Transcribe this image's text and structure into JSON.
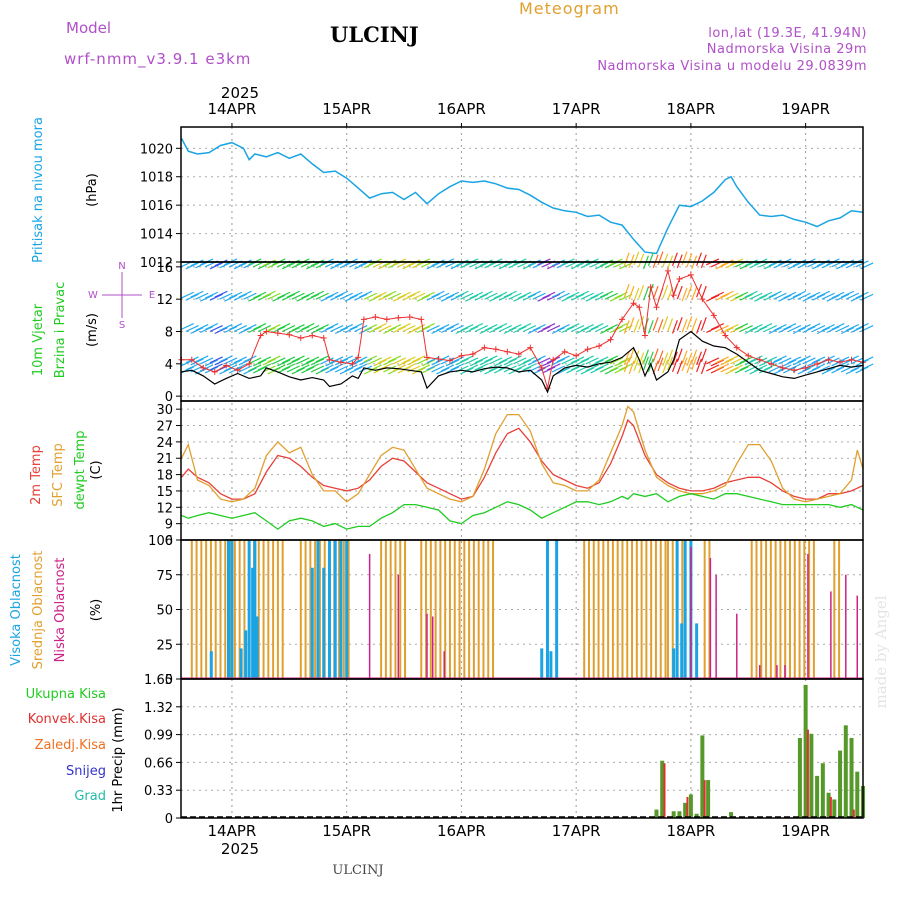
{
  "header": {
    "model_label": "Model",
    "model_name": "wrf-nmm_v3.9.1  e3km",
    "station": "ULCINJ",
    "meteogram": "Meteogram",
    "lonlat": "lon,lat (19.3E, 41.94N)",
    "elevation": "Nadmorska Visina 29m",
    "model_elevation": "Nadmorska Visina u modelu 29.0839m",
    "footer_station": "ULCINJ",
    "watermark": "made by Angel"
  },
  "colors": {
    "pressure": "#1aa4e4",
    "temp2m": "#e8413a",
    "sfc": "#e0a030",
    "dewpt": "#22cc22",
    "high_cloud": "#1aa4e4",
    "mid_cloud": "#e0a030",
    "low_cloud": "#cc2288",
    "precip_total": "#55992a",
    "precip_conv": "#e03030",
    "wind_gust": "#ee3030",
    "wind_speed": "#000000"
  },
  "time_axis": {
    "year": "2025",
    "days": [
      "14APR",
      "15APR",
      "16APR",
      "17APR",
      "18APR",
      "19APR"
    ],
    "day_start": 13.556,
    "day_end": 19.5
  },
  "chart_data": [
    {
      "type": "line",
      "name": "pressure",
      "ylabel_lines": [
        "Pritisak na nivou mora",
        "(hPa)"
      ],
      "ylim": [
        1012,
        1021.5
      ],
      "yticks": [
        1012,
        1014,
        1016,
        1018,
        1020
      ],
      "x": [
        13.56,
        13.62,
        13.7,
        13.8,
        13.9,
        14.0,
        14.1,
        14.15,
        14.2,
        14.3,
        14.4,
        14.5,
        14.6,
        14.7,
        14.8,
        14.9,
        15.0,
        15.1,
        15.2,
        15.3,
        15.4,
        15.5,
        15.6,
        15.7,
        15.8,
        15.9,
        16.0,
        16.1,
        16.2,
        16.3,
        16.4,
        16.5,
        16.6,
        16.7,
        16.8,
        16.9,
        17.0,
        17.1,
        17.2,
        17.3,
        17.4,
        17.5,
        17.6,
        17.7,
        17.8,
        17.9,
        18.0,
        18.1,
        18.2,
        18.3,
        18.35,
        18.4,
        18.5,
        18.6,
        18.7,
        18.8,
        18.9,
        19.0,
        19.1,
        19.2,
        19.3,
        19.4,
        19.5
      ],
      "y": [
        1020.7,
        1019.8,
        1019.6,
        1019.7,
        1020.2,
        1020.4,
        1020.0,
        1019.2,
        1019.6,
        1019.4,
        1019.7,
        1019.3,
        1019.6,
        1018.9,
        1018.3,
        1018.4,
        1017.9,
        1017.2,
        1016.5,
        1016.8,
        1016.9,
        1016.4,
        1016.9,
        1016.1,
        1016.8,
        1017.3,
        1017.7,
        1017.6,
        1017.7,
        1017.5,
        1017.2,
        1017.1,
        1016.7,
        1016.2,
        1015.8,
        1015.6,
        1015.5,
        1015.2,
        1015.3,
        1014.8,
        1014.6,
        1013.6,
        1012.7,
        1012.6,
        1014.4,
        1016.0,
        1015.9,
        1016.3,
        1016.9,
        1017.8,
        1018.0,
        1017.3,
        1016.2,
        1015.3,
        1015.2,
        1015.3,
        1015.0,
        1014.8,
        1014.5,
        1014.9,
        1015.1,
        1015.6,
        1015.5
      ]
    },
    {
      "type": "line",
      "name": "wind",
      "ylabel_lines": [
        "10m Vjetar",
        "Brzina i Pravac",
        "(m/s)"
      ],
      "compass": [
        "N",
        "W",
        "E",
        "S"
      ],
      "ylim": [
        -0.6,
        16.6
      ],
      "yticks": [
        0,
        4,
        8,
        12,
        16
      ],
      "x": [
        13.56,
        13.65,
        13.75,
        13.85,
        13.95,
        14.05,
        14.15,
        14.25,
        14.3,
        14.4,
        14.5,
        14.6,
        14.7,
        14.8,
        14.85,
        14.95,
        15.05,
        15.1,
        15.15,
        15.25,
        15.35,
        15.45,
        15.55,
        15.65,
        15.7,
        15.8,
        15.9,
        16.0,
        16.1,
        16.2,
        16.3,
        16.4,
        16.5,
        16.6,
        16.7,
        16.75,
        16.8,
        16.9,
        17.0,
        17.1,
        17.2,
        17.3,
        17.4,
        17.5,
        17.55,
        17.6,
        17.65,
        17.7,
        17.8,
        17.85,
        17.9,
        18.0,
        18.1,
        18.2,
        18.3,
        18.4,
        18.5,
        18.6,
        18.7,
        18.8,
        18.9,
        19.0,
        19.1,
        19.2,
        19.3,
        19.4,
        19.5
      ],
      "series": [
        {
          "name": "gust",
          "values": [
            4.5,
            4.5,
            3.5,
            3.0,
            3.8,
            3.2,
            4.0,
            7.5,
            8.0,
            7.8,
            7.6,
            7.2,
            7.5,
            7.2,
            4.5,
            4.2,
            4.0,
            4.8,
            9.5,
            9.8,
            9.5,
            9.7,
            9.8,
            9.5,
            4.8,
            4.6,
            4.4,
            5.0,
            5.2,
            6.0,
            5.8,
            5.5,
            5.2,
            6.0,
            3.5,
            1.0,
            4.5,
            5.5,
            5.0,
            5.8,
            6.2,
            7.0,
            9.5,
            11.5,
            11.0,
            7.5,
            13.5,
            11.0,
            15.5,
            12.5,
            14.5,
            15.0,
            12.0,
            10.0,
            7.5,
            6.0,
            5.0,
            4.5,
            4.0,
            3.5,
            3.2,
            3.5,
            4.0,
            4.5,
            4.2,
            4.5,
            4.2
          ]
        },
        {
          "name": "speed",
          "values": [
            3.0,
            3.2,
            2.5,
            1.5,
            2.2,
            2.8,
            2.2,
            2.5,
            3.5,
            3.0,
            2.4,
            2.0,
            2.3,
            2.0,
            1.2,
            1.5,
            2.5,
            2.2,
            3.5,
            3.2,
            3.5,
            3.4,
            3.2,
            3.0,
            1.0,
            2.5,
            3.0,
            3.2,
            3.0,
            3.4,
            3.6,
            3.5,
            3.0,
            3.2,
            2.0,
            0.5,
            2.5,
            3.5,
            3.8,
            3.6,
            4.0,
            4.2,
            4.8,
            6.0,
            4.5,
            2.5,
            4.0,
            2.0,
            3.0,
            4.5,
            7.0,
            8.0,
            6.8,
            6.2,
            6.0,
            5.2,
            4.2,
            3.2,
            2.8,
            2.4,
            2.2,
            2.6,
            3.0,
            3.4,
            3.8,
            3.6,
            3.8
          ]
        }
      ]
    },
    {
      "type": "line",
      "name": "temperature",
      "ylabel_lines": [
        "2m Temp",
        "SFC Temp",
        "dewpt Temp",
        "(C)"
      ],
      "ylim": [
        6,
        31.5
      ],
      "yticks": [
        6,
        9,
        12,
        15,
        18,
        21,
        24,
        27,
        30
      ],
      "x": [
        13.56,
        13.62,
        13.7,
        13.8,
        13.9,
        14.0,
        14.1,
        14.2,
        14.3,
        14.4,
        14.5,
        14.6,
        14.7,
        14.8,
        14.9,
        15.0,
        15.1,
        15.2,
        15.3,
        15.4,
        15.5,
        15.6,
        15.7,
        15.8,
        15.9,
        16.0,
        16.1,
        16.2,
        16.3,
        16.4,
        16.5,
        16.6,
        16.7,
        16.8,
        16.9,
        17.0,
        17.1,
        17.2,
        17.3,
        17.4,
        17.45,
        17.5,
        17.6,
        17.7,
        17.8,
        17.9,
        18.0,
        18.1,
        18.2,
        18.3,
        18.4,
        18.5,
        18.6,
        18.7,
        18.8,
        18.9,
        19.0,
        19.1,
        19.2,
        19.3,
        19.4,
        19.45,
        19.5
      ],
      "series": [
        {
          "name": "2m",
          "values": [
            17.5,
            19.0,
            17.5,
            16.5,
            14.5,
            13.5,
            13.5,
            14.5,
            18.5,
            21.5,
            21.0,
            19.5,
            17.5,
            16.0,
            15.5,
            15.0,
            15.5,
            17.0,
            19.5,
            21.0,
            20.5,
            18.5,
            16.5,
            15.5,
            14.5,
            13.5,
            14.0,
            17.5,
            22.0,
            25.5,
            26.5,
            24.0,
            20.5,
            18.0,
            17.0,
            16.0,
            15.5,
            16.5,
            20.0,
            25.0,
            28.0,
            27.0,
            21.5,
            18.0,
            16.5,
            15.5,
            15.0,
            15.0,
            15.5,
            16.5,
            17.0,
            17.5,
            17.5,
            16.5,
            15.0,
            14.0,
            13.5,
            13.5,
            14.5,
            14.5,
            15.0,
            15.5,
            16.0
          ]
        },
        {
          "name": "sfc",
          "values": [
            21.0,
            23.5,
            17.0,
            16.0,
            13.5,
            13.0,
            13.5,
            15.5,
            21.5,
            24.0,
            22.0,
            23.0,
            18.0,
            15.0,
            15.0,
            13.0,
            14.5,
            18.0,
            21.5,
            23.0,
            22.5,
            19.0,
            15.5,
            14.5,
            13.5,
            13.0,
            14.0,
            19.0,
            25.5,
            29.0,
            29.0,
            26.0,
            20.0,
            16.5,
            16.0,
            15.0,
            15.0,
            17.0,
            22.0,
            27.0,
            30.5,
            29.5,
            22.5,
            17.5,
            16.0,
            15.0,
            14.5,
            14.5,
            15.0,
            16.0,
            20.0,
            23.5,
            23.5,
            20.5,
            15.5,
            13.5,
            13.0,
            13.5,
            14.0,
            14.5,
            17.0,
            22.5,
            19.0
          ]
        },
        {
          "name": "dewpt",
          "values": [
            10.5,
            10.0,
            10.5,
            11.0,
            10.5,
            10.0,
            10.5,
            11.0,
            9.5,
            8.0,
            9.5,
            10.0,
            9.5,
            8.5,
            9.0,
            8.0,
            8.5,
            8.5,
            10.0,
            11.0,
            12.5,
            12.5,
            12.0,
            11.5,
            9.5,
            9.0,
            10.5,
            11.0,
            12.0,
            13.0,
            12.5,
            11.5,
            10.0,
            11.0,
            12.0,
            13.0,
            13.0,
            12.5,
            13.0,
            14.0,
            13.5,
            14.5,
            14.0,
            14.5,
            13.0,
            14.0,
            14.5,
            14.0,
            13.5,
            14.5,
            14.5,
            14.0,
            13.5,
            13.0,
            12.5,
            12.5,
            12.5,
            12.5,
            12.5,
            12.0,
            12.5,
            12.0,
            11.5
          ]
        }
      ]
    },
    {
      "type": "bar",
      "name": "cloud_cover",
      "ylabel_lines": [
        "Visoka Oblacnost",
        "Srednja Oblacnost",
        "Niska Oblacnost",
        "(%)"
      ],
      "ylim": [
        0,
        100
      ],
      "yticks": [
        0,
        25,
        50,
        75,
        100
      ],
      "mid_on_ranges": [
        [
          13.65,
          14.45
        ],
        [
          14.6,
          15.05
        ],
        [
          15.3,
          15.55
        ],
        [
          15.65,
          16.3
        ],
        [
          17.07,
          17.78
        ],
        [
          17.8,
          17.95
        ],
        [
          18.12,
          18.17
        ],
        [
          18.53,
          19.1
        ],
        [
          19.25,
          19.3
        ]
      ],
      "high_bars": [
        {
          "x": 13.82,
          "v": 20
        },
        {
          "x": 13.97,
          "v": 100
        },
        {
          "x": 14.0,
          "v": 100
        },
        {
          "x": 14.08,
          "v": 22
        },
        {
          "x": 14.12,
          "v": 35
        },
        {
          "x": 14.15,
          "v": 100
        },
        {
          "x": 14.18,
          "v": 80
        },
        {
          "x": 14.2,
          "v": 100
        },
        {
          "x": 14.22,
          "v": 45
        },
        {
          "x": 14.7,
          "v": 80
        },
        {
          "x": 14.75,
          "v": 100
        },
        {
          "x": 14.8,
          "v": 80
        },
        {
          "x": 14.85,
          "v": 100
        },
        {
          "x": 14.9,
          "v": 100
        },
        {
          "x": 14.95,
          "v": 100
        },
        {
          "x": 15.0,
          "v": 100
        },
        {
          "x": 16.7,
          "v": 22
        },
        {
          "x": 16.75,
          "v": 100
        },
        {
          "x": 16.78,
          "v": 20
        },
        {
          "x": 16.83,
          "v": 100
        },
        {
          "x": 17.85,
          "v": 22
        },
        {
          "x": 17.88,
          "v": 100
        },
        {
          "x": 17.92,
          "v": 40
        },
        {
          "x": 17.95,
          "v": 100
        },
        {
          "x": 18.0,
          "v": 100
        },
        {
          "x": 18.05,
          "v": 40
        }
      ],
      "low_bars": [
        {
          "x": 15.2,
          "v": 90
        },
        {
          "x": 15.45,
          "v": 75
        },
        {
          "x": 15.7,
          "v": 47
        },
        {
          "x": 15.75,
          "v": 45
        },
        {
          "x": 15.85,
          "v": 20
        },
        {
          "x": 18.0,
          "v": 95
        },
        {
          "x": 18.17,
          "v": 87
        },
        {
          "x": 18.22,
          "v": 75
        },
        {
          "x": 18.4,
          "v": 47
        },
        {
          "x": 18.6,
          "v": 10
        },
        {
          "x": 18.75,
          "v": 10
        },
        {
          "x": 18.82,
          "v": 10
        },
        {
          "x": 19.02,
          "v": 90
        },
        {
          "x": 19.22,
          "v": 63
        },
        {
          "x": 19.35,
          "v": 75
        },
        {
          "x": 19.45,
          "v": 60
        }
      ]
    },
    {
      "type": "bar",
      "name": "precipitation",
      "ylabel_lines": [
        "1hr Precip (mm)"
      ],
      "legend": [
        "Ukupna Kisa",
        "Konvek.Kisa",
        "Zaledj.Kisa",
        "Snijeg",
        "Grad"
      ],
      "ylim": [
        0,
        1.65
      ],
      "yticks": [
        0,
        0.33,
        0.66,
        0.99,
        1.32,
        1.65
      ],
      "ytick_labels": [
        "0",
        "0.33",
        "0.66",
        "0.99",
        "1.32",
        "1.65"
      ],
      "total": [
        {
          "x": 17.7,
          "v": 0.1
        },
        {
          "x": 17.75,
          "v": 0.68
        },
        {
          "x": 17.85,
          "v": 0.08
        },
        {
          "x": 17.9,
          "v": 0.08
        },
        {
          "x": 17.95,
          "v": 0.18
        },
        {
          "x": 18.0,
          "v": 0.28
        },
        {
          "x": 18.05,
          "v": 0.05
        },
        {
          "x": 18.1,
          "v": 0.98
        },
        {
          "x": 18.15,
          "v": 0.45
        },
        {
          "x": 18.35,
          "v": 0.07
        },
        {
          "x": 18.95,
          "v": 0.95
        },
        {
          "x": 19.0,
          "v": 1.58
        },
        {
          "x": 19.05,
          "v": 1.0
        },
        {
          "x": 19.1,
          "v": 0.5
        },
        {
          "x": 19.15,
          "v": 0.65
        },
        {
          "x": 19.2,
          "v": 0.3
        },
        {
          "x": 19.25,
          "v": 0.22
        },
        {
          "x": 19.3,
          "v": 0.8
        },
        {
          "x": 19.35,
          "v": 1.1
        },
        {
          "x": 19.4,
          "v": 0.95
        },
        {
          "x": 19.45,
          "v": 0.55
        },
        {
          "x": 19.5,
          "v": 0.38
        }
      ],
      "conv": [
        {
          "x": 17.77,
          "v": 0.65
        },
        {
          "x": 17.97,
          "v": 0.25
        },
        {
          "x": 18.12,
          "v": 0.45
        },
        {
          "x": 19.02,
          "v": 1.05
        },
        {
          "x": 19.22,
          "v": 0.25
        },
        {
          "x": 19.42,
          "v": 0.1
        }
      ]
    }
  ]
}
